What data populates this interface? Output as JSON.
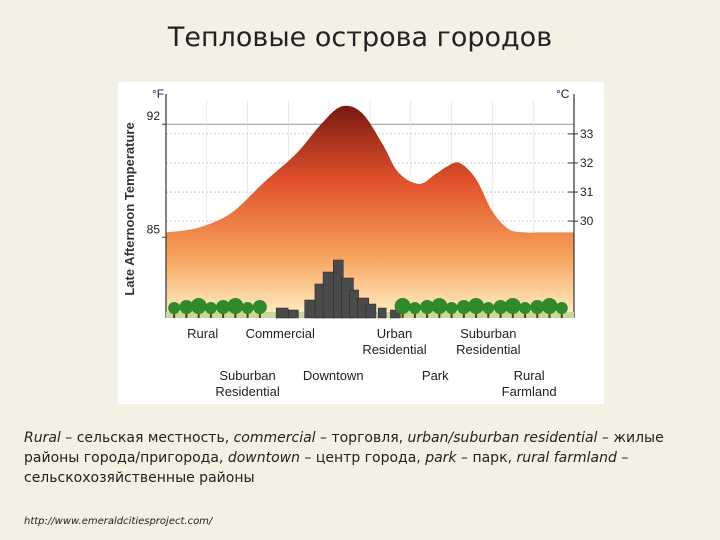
{
  "slide": {
    "title": "Тепловые острова городов",
    "caption": [
      {
        "text": "Rural",
        "italic": true
      },
      {
        "text": " – сельская местность, ",
        "italic": false
      },
      {
        "text": "commercial",
        "italic": true
      },
      {
        "text": " – торговля, ",
        "italic": false
      },
      {
        "text": "urban/suburban residential",
        "italic": true
      },
      {
        "text": " – жилые районы города/пригорода, ",
        "italic": false
      },
      {
        "text": "downtown",
        "italic": true
      },
      {
        "text": " – центр города, ",
        "italic": false
      },
      {
        "text": "park",
        "italic": true
      },
      {
        "text": " – парк, ",
        "italic": false
      },
      {
        "text": "rural farmland",
        "italic": true
      },
      {
        "text": " – сельскохозяйственные районы",
        "italic": false
      }
    ],
    "source": "http://www.emeraldcitiesproject.com/"
  },
  "chart_data": {
    "type": "area",
    "title": "",
    "ylabel": "Late Afternoon Temperature",
    "y_unit_left": "°F",
    "y_unit_right": "°C",
    "ylim_f": [
      80,
      93.5
    ],
    "left_ticks": [
      92,
      85
    ],
    "right_ticks": [
      33,
      32,
      31,
      30
    ],
    "profile": {
      "x": [
        0.0,
        0.08,
        0.16,
        0.24,
        0.32,
        0.38,
        0.43,
        0.48,
        0.53,
        0.57,
        0.62,
        0.66,
        0.69,
        0.72,
        0.76,
        0.8,
        0.84,
        0.88,
        0.92,
        1.0
      ],
      "temp_f": [
        85.3,
        85.6,
        86.5,
        88.4,
        90.2,
        92.0,
        93.1,
        92.7,
        90.8,
        89.0,
        88.3,
        88.9,
        89.4,
        89.6,
        88.6,
        86.6,
        85.5,
        85.3,
        85.3,
        85.3
      ]
    },
    "categories_row1": [
      {
        "label": "Rural",
        "x": 0.09
      },
      {
        "label": "Commercial",
        "x": 0.28
      },
      {
        "label": "Urban\nResidential",
        "x": 0.56
      },
      {
        "label": "Suburban\nResidential",
        "x": 0.79
      }
    ],
    "categories_row2": [
      {
        "label": "Suburban\nResidential",
        "x": 0.2
      },
      {
        "label": "Downtown",
        "x": 0.41
      },
      {
        "label": "Park",
        "x": 0.66
      },
      {
        "label": "Rural\nFarmland",
        "x": 0.89
      }
    ],
    "grid": true,
    "colors": {
      "peak": "#7a1a12",
      "mid": "#e0502a",
      "low": "#f6a05a",
      "base": "#fff2c8",
      "trees": "#2f8a2a",
      "buildings": "#4a4a4a"
    }
  }
}
